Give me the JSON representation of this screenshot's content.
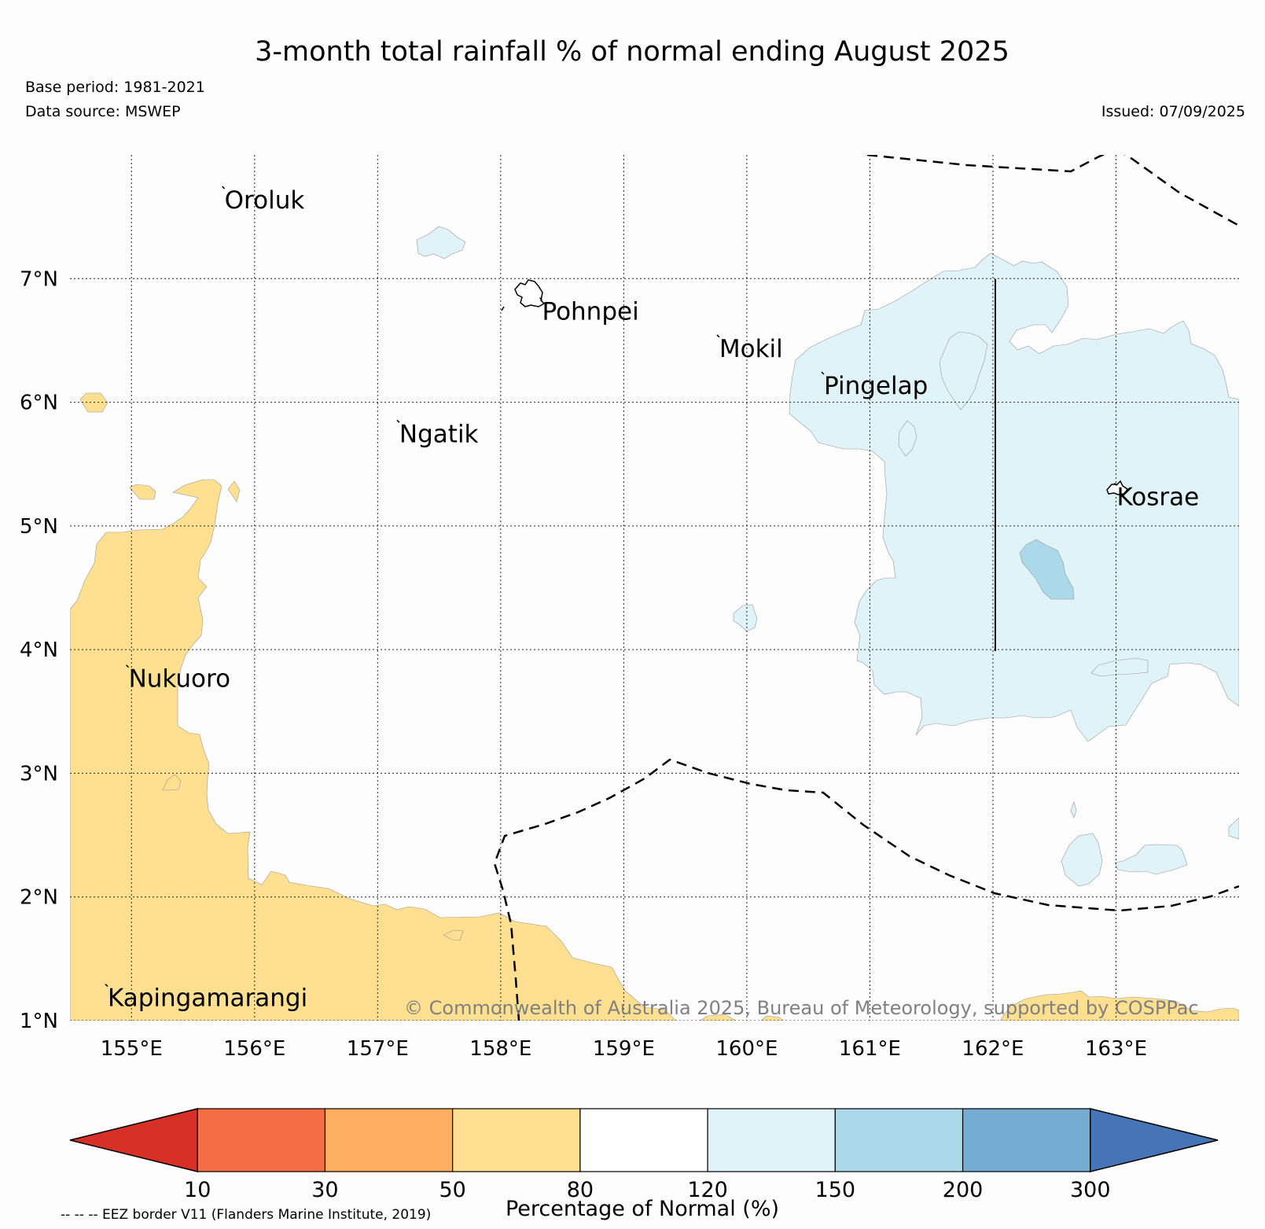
{
  "title": "3-month total rainfall % of normal ending August 2025",
  "base_period": "Base period: 1981-2021",
  "data_source": "Data source: MSWEP",
  "issued": "Issued: 07/09/2025",
  "copyright": "© Commonwealth of Australia 2025, Bureau of Meteorology, supported by COSPPac",
  "eez_note": "-- -- -- EEZ border V11 (Flanders Marine Institute, 2019)",
  "axes": {
    "lon_labels": [
      "155°E",
      "156°E",
      "157°E",
      "158°E",
      "159°E",
      "160°E",
      "161°E",
      "162°E",
      "163°E"
    ],
    "lat_labels": [
      "1°N",
      "2°N",
      "3°N",
      "4°N",
      "5°N",
      "6°N",
      "7°N"
    ],
    "lon_range": [
      154.5,
      164.0
    ],
    "lat_range": [
      1.0,
      8.0
    ]
  },
  "places": [
    {
      "name": "Oroluk",
      "lon": 155.75,
      "lat": 7.72
    },
    {
      "name": "Pohnpei",
      "lon": 158.33,
      "lat": 6.82
    },
    {
      "name": "Mokil",
      "lon": 159.77,
      "lat": 6.52
    },
    {
      "name": "Pingelap",
      "lon": 160.62,
      "lat": 6.22
    },
    {
      "name": "Ngatik",
      "lon": 157.17,
      "lat": 5.83
    },
    {
      "name": "Kosrae",
      "lon": 163.0,
      "lat": 5.32
    },
    {
      "name": "Nukuoro",
      "lon": 154.97,
      "lat": 3.85
    },
    {
      "name": "Kapingamarangi",
      "lon": 154.8,
      "lat": 1.27
    }
  ],
  "colorbar": {
    "label": "Percentage of Normal (%)",
    "ticks": [
      "10",
      "30",
      "50",
      "80",
      "120",
      "150",
      "200",
      "300"
    ],
    "colors": [
      "#d73027",
      "#f46d43",
      "#fdae61",
      "#fee090",
      "#ffffff",
      "#e0f3f8",
      "#abd9e9",
      "#74add1",
      "#4575b4"
    ]
  }
}
